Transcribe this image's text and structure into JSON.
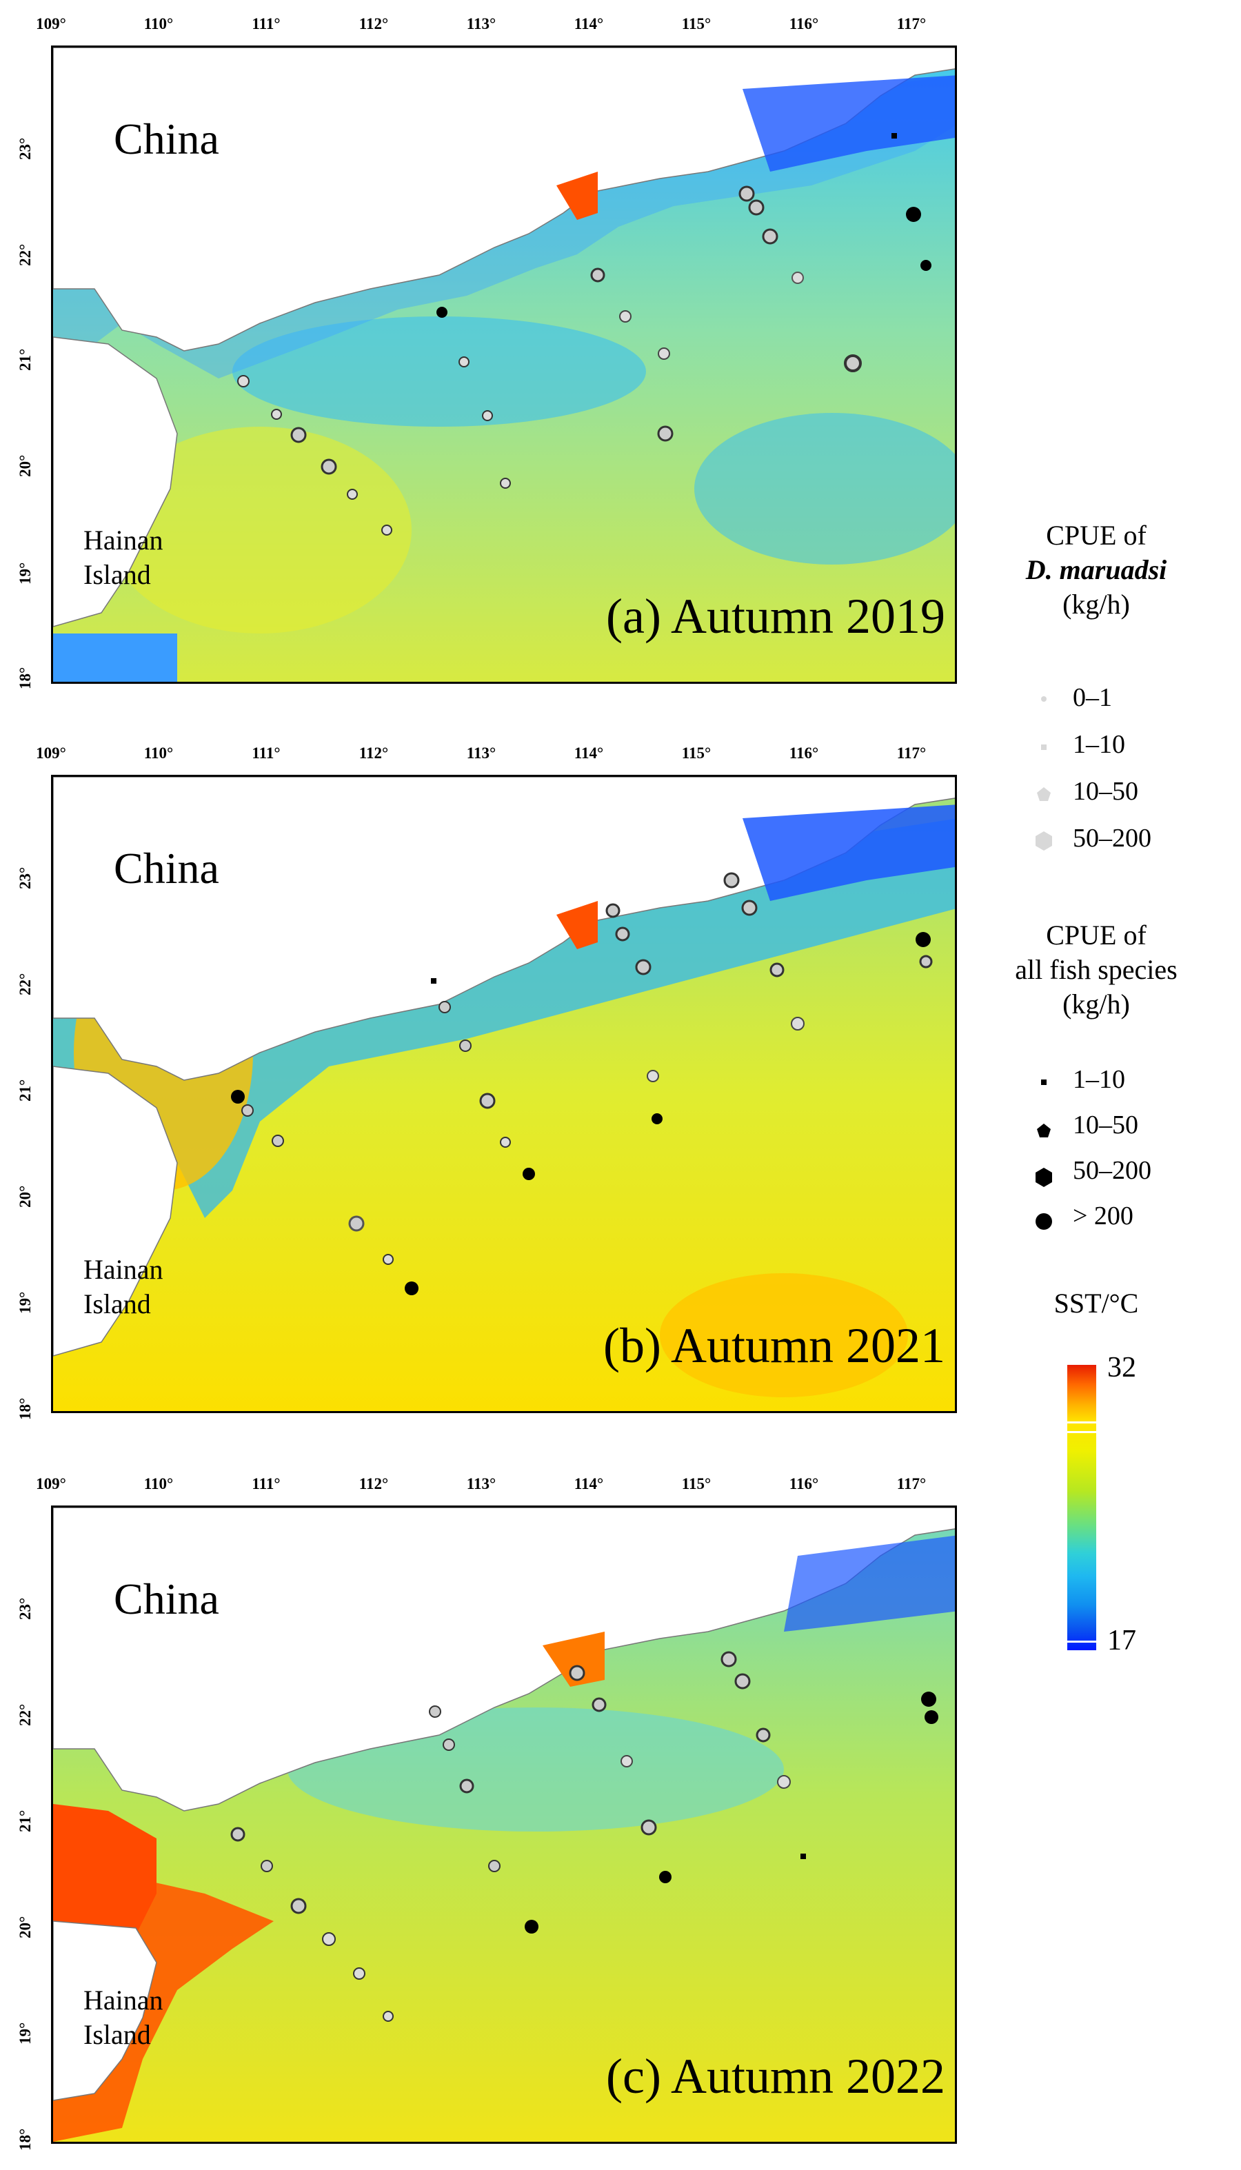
{
  "lon_labels": [
    "109°",
    "110°",
    "111°",
    "112°",
    "113°",
    "114°",
    "115°",
    "116°",
    "117°"
  ],
  "lat_labels": [
    "18°",
    "19°",
    "20°",
    "21°",
    "22°",
    "23°"
  ],
  "panels": [
    {
      "country": "China",
      "island_line1": "Hainan",
      "island_line2": "Island",
      "title": "(a) Autumn 2019"
    },
    {
      "country": "China",
      "island_line1": "Hainan",
      "island_line2": "Island",
      "title": "(b) Autumn 2021"
    },
    {
      "country": "China",
      "island_line1": "Hainan",
      "island_line2": "Island",
      "title": "(c) Autumn 2022"
    }
  ],
  "legend": {
    "cpue_dm_title_1": "CPUE of",
    "cpue_dm_species": "D. maruadsi",
    "cpue_dm_unit": "(kg/h)",
    "cpue_dm_classes": [
      "0–1",
      "1–10",
      "10–50",
      "50–200"
    ],
    "cpue_all_title_1": "CPUE of",
    "cpue_all_title_2": "all fish species",
    "cpue_all_unit": "(kg/h)",
    "cpue_all_classes": [
      "1–10",
      "10–50",
      "50–200",
      "> 200"
    ],
    "sst_title": "SST/°C",
    "sst_max": "32",
    "sst_min": "17"
  },
  "colors": {
    "land": "#ffffff",
    "warm": "#ff4a00",
    "cool": "#1a8cff",
    "mid": "#e6ec2a",
    "symbol_fill": "#000000",
    "symbol_light": "#d8d8d8"
  }
}
